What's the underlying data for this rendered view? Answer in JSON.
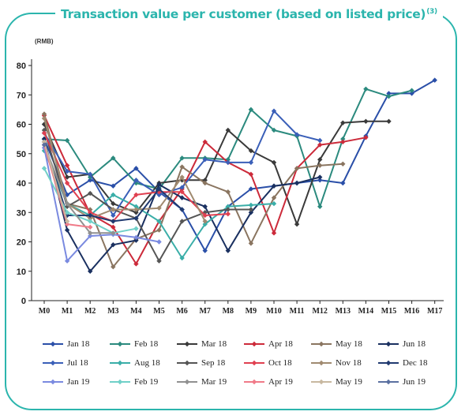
{
  "header": {
    "title": "Transaction value per customer (based on listed price)",
    "title_note": "(3)",
    "unit": "(RMB)"
  },
  "chart_data": {
    "type": "line",
    "title": "Transaction value per customer (based on listed price)",
    "ylabel": "(RMB)",
    "xlabel": "",
    "x": [
      "M0",
      "M1",
      "M2",
      "M3",
      "M4",
      "M5",
      "M6",
      "M7",
      "M8",
      "M9",
      "M10",
      "M11",
      "M12",
      "M13",
      "M14",
      "M15",
      "M16",
      "M17"
    ],
    "ylim": [
      0,
      80
    ],
    "yticks": [
      0,
      10,
      20,
      30,
      40,
      50,
      60,
      70,
      80
    ],
    "grid": false,
    "legend_position": "bottom",
    "series": [
      {
        "name": "Jan 18",
        "color": "#2a4fa8",
        "values": [
          55,
          36,
          41,
          39,
          45,
          37,
          31,
          17,
          32,
          38,
          39,
          40,
          41,
          40,
          56,
          70.5,
          70.5,
          75
        ]
      },
      {
        "name": "Feb 18",
        "color": "#2b8a7e",
        "values": [
          55,
          54.5,
          42,
          48.5,
          40,
          38,
          48.5,
          48.5,
          48,
          65,
          58,
          56,
          32,
          55,
          72,
          69.5,
          71.5,
          null
        ]
      },
      {
        "name": "Mar 18",
        "color": "#3a3a3a",
        "values": [
          60,
          42,
          43,
          33,
          30,
          40,
          41,
          41,
          58,
          51,
          47,
          26,
          48,
          60.5,
          61,
          61,
          null,
          null
        ]
      },
      {
        "name": "Apr 18",
        "color": "#cc2a3a",
        "values": [
          63,
          46,
          29.5,
          25,
          12.5,
          27,
          38,
          54,
          47,
          43,
          23,
          45,
          53,
          54,
          55.5,
          null,
          null,
          null
        ]
      },
      {
        "name": "May 18",
        "color": "#8a7560",
        "values": [
          63.5,
          33,
          31,
          11.5,
          21,
          24,
          45.5,
          40,
          37,
          19.5,
          35,
          45,
          46,
          46.5,
          null,
          null,
          null,
          null
        ]
      },
      {
        "name": "Jun 18",
        "color": "#1a3060",
        "values": [
          55,
          24,
          10,
          19,
          20.5,
          39.5,
          35,
          32,
          17,
          30,
          39,
          40,
          42,
          null,
          null,
          null,
          null,
          null
        ]
      },
      {
        "name": "Jul 18",
        "color": "#3a5fb8",
        "values": [
          57,
          44,
          43,
          29,
          41,
          36,
          38.5,
          48,
          47,
          47,
          64.5,
          56.5,
          54.5,
          null,
          null,
          null,
          null,
          null
        ]
      },
      {
        "name": "Aug 18",
        "color": "#3aaea8",
        "values": [
          51,
          33,
          29,
          36,
          32,
          27,
          14.5,
          26,
          32,
          32.5,
          33,
          null,
          null,
          null,
          null,
          null,
          null,
          null
        ]
      },
      {
        "name": "Sep 18",
        "color": "#555555",
        "values": [
          58,
          32,
          36.5,
          31,
          28,
          13.5,
          27,
          30,
          31,
          31,
          null,
          null,
          null,
          null,
          null,
          null,
          null,
          null
        ]
      },
      {
        "name": "Oct 18",
        "color": "#e04050",
        "values": [
          57,
          40,
          30,
          27,
          36,
          37,
          37,
          29,
          29.5,
          null,
          null,
          null,
          null,
          null,
          null,
          null,
          null,
          null
        ]
      },
      {
        "name": "Nov 18",
        "color": "#a08a70",
        "values": [
          62,
          33,
          28,
          31,
          31,
          31.5,
          42,
          27,
          null,
          null,
          null,
          null,
          null,
          null,
          null,
          null,
          null,
          null
        ]
      },
      {
        "name": "Dec 18",
        "color": "#203a70",
        "values": [
          54,
          29,
          29,
          27,
          28,
          38,
          31,
          null,
          null,
          null,
          null,
          null,
          null,
          null,
          null,
          null,
          null,
          null
        ]
      },
      {
        "name": "Jan 19",
        "color": "#7a8ae0",
        "values": [
          52,
          13.5,
          22,
          22.5,
          21.5,
          20,
          null,
          null,
          null,
          null,
          null,
          null,
          null,
          null,
          null,
          null,
          null,
          null
        ]
      },
      {
        "name": "Feb 19",
        "color": "#70d0c8",
        "values": [
          45,
          30,
          27,
          23,
          24.5,
          null,
          null,
          null,
          null,
          null,
          null,
          null,
          null,
          null,
          null,
          null,
          null,
          null
        ]
      },
      {
        "name": "Mar 19",
        "color": "#909090",
        "values": [
          53,
          33,
          23,
          23,
          null,
          null,
          null,
          null,
          null,
          null,
          null,
          null,
          null,
          null,
          null,
          null,
          null,
          null
        ]
      },
      {
        "name": "Apr 19",
        "color": "#f07a88",
        "values": [
          53,
          26,
          25,
          null,
          null,
          null,
          null,
          null,
          null,
          null,
          null,
          null,
          null,
          null,
          null,
          null,
          null,
          null
        ]
      },
      {
        "name": "May 19",
        "color": "#c8b8a0",
        "values": [
          54,
          27,
          null,
          null,
          null,
          null,
          null,
          null,
          null,
          null,
          null,
          null,
          null,
          null,
          null,
          null,
          null,
          null
        ]
      },
      {
        "name": "Jun 19",
        "color": "#5a70a0",
        "values": [
          53,
          null,
          null,
          null,
          null,
          null,
          null,
          null,
          null,
          null,
          null,
          null,
          null,
          null,
          null,
          null,
          null,
          null
        ]
      }
    ]
  }
}
